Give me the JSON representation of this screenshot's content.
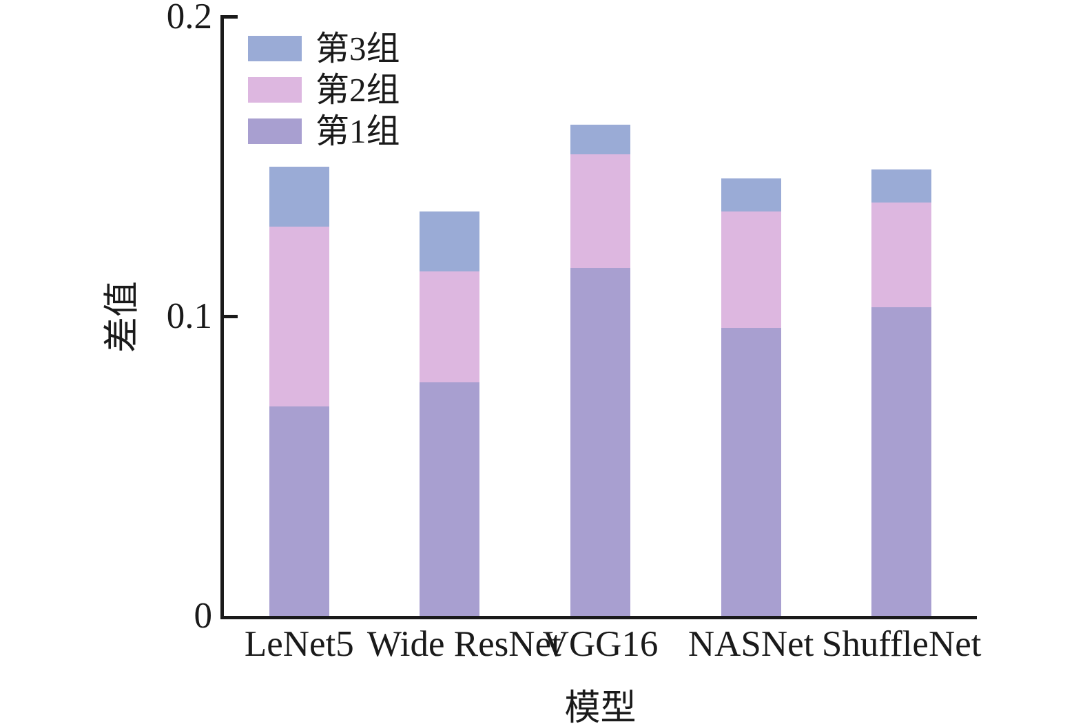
{
  "chart_data": {
    "type": "bar",
    "stacked": true,
    "title": "",
    "xlabel": "模型",
    "ylabel": "差值",
    "categories": [
      "LeNet5",
      "Wide ResNet",
      "VGG16",
      "NASNet",
      "ShuffleNet"
    ],
    "series": [
      {
        "name": "第1组",
        "color": "#a89fd0",
        "values": [
          0.07,
          0.078,
          0.116,
          0.096,
          0.103
        ]
      },
      {
        "name": "第2组",
        "color": "#ddb7e0",
        "values": [
          0.06,
          0.037,
          0.038,
          0.039,
          0.035
        ]
      },
      {
        "name": "第3组",
        "color": "#9aabd6",
        "values": [
          0.02,
          0.02,
          0.01,
          0.011,
          0.011
        ]
      }
    ],
    "legend_order": [
      "第3组",
      "第2组",
      "第1组"
    ],
    "legend_position": "upper-left",
    "ylim": [
      0,
      0.2
    ],
    "yticks": [
      0,
      0.1,
      0.2
    ],
    "ytick_labels": [
      "0",
      "0.1",
      "0.2"
    ],
    "grid": false,
    "axis_color": "#1a1a1a",
    "background_color": "#ffffff"
  }
}
